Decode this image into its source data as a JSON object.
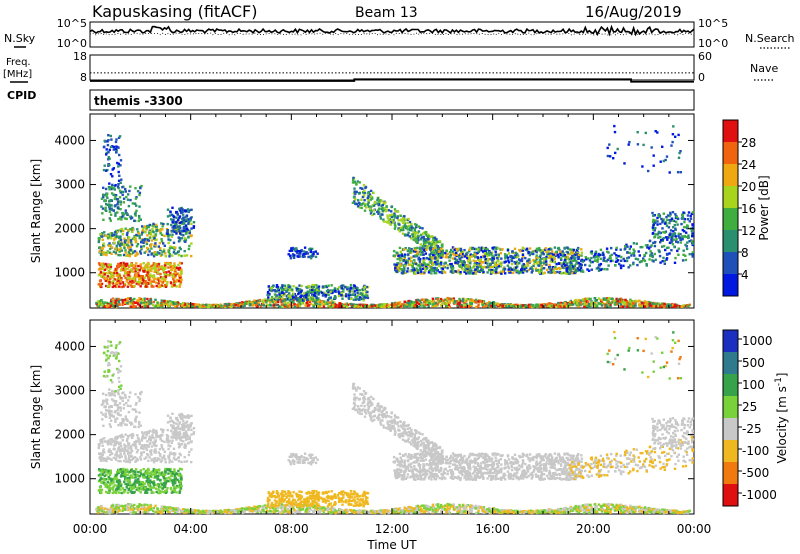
{
  "header": {
    "station": "Kapuskasing (fitACF)",
    "beam": "Beam 13",
    "date": "16/Aug/2019"
  },
  "side_labels": {
    "nsky": "N.Sky",
    "freq_top": "Freq.",
    "freq_bottom": "[MHz]",
    "cpid": "CPID",
    "nsearch": "N.Search",
    "nave": "Nave",
    "cpid_value": "themis -3300"
  },
  "chart_data": [
    {
      "type": "line",
      "panel": "noise",
      "left_ticks": [
        "10^5",
        "10^0"
      ],
      "right_ticks": [
        "10^5",
        "10^0"
      ],
      "series": [
        {
          "name": "N.Sky",
          "level": 0.85
        },
        {
          "name": "N.Search",
          "level": 0.78
        }
      ]
    },
    {
      "type": "line",
      "panel": "freq_nave",
      "left_ticks": [
        "18",
        "8"
      ],
      "right_ticks": [
        "60",
        "0"
      ],
      "series": [
        {
          "name": "Freq",
          "x": [
            "00:00",
            "10:30",
            "21:30",
            "24:00"
          ],
          "values": [
            9.2,
            9.9,
            8.9,
            8.9
          ]
        },
        {
          "name": "Nave",
          "constant": 17
        }
      ]
    },
    {
      "type": "heatmap",
      "panel": "power",
      "ylabel": "Slant Range [km]",
      "yticks": [
        "4000",
        "3000",
        "2000",
        "1000"
      ],
      "ylim": [
        200,
        4600
      ],
      "colorbar_label": "Power [dB]",
      "colorbar_ticks": [
        "28",
        "24",
        "20",
        "16",
        "12",
        "8",
        "4"
      ],
      "colors": [
        "#0018e0",
        "#1f4fb8",
        "#2a8f6e",
        "#3fae3f",
        "#a8d41e",
        "#f0a812",
        "#f06410",
        "#e01010"
      ]
    },
    {
      "type": "heatmap",
      "panel": "velocity",
      "ylabel": "Slant Range [km]",
      "yticks": [
        "4000",
        "3000",
        "2000",
        "1000"
      ],
      "ylim": [
        200,
        4600
      ],
      "colorbar_label": "Velocity [m s",
      "colorbar_sup": "-1",
      "colorbar_label_end": "]",
      "colorbar_ticks": [
        "1000",
        "500",
        "100",
        "25",
        "-25",
        "-100",
        "-500",
        "-1000"
      ],
      "colors": [
        "#1a2fc0",
        "#2f7a8c",
        "#36a24a",
        "#7ad23a",
        "#c8c8c8",
        "#f0b820",
        "#f07a10",
        "#e01010"
      ],
      "xlabel": "Time UT",
      "xticks": [
        "00:00",
        "04:00",
        "08:00",
        "12:00",
        "16:00",
        "20:00",
        "00:00"
      ]
    }
  ]
}
